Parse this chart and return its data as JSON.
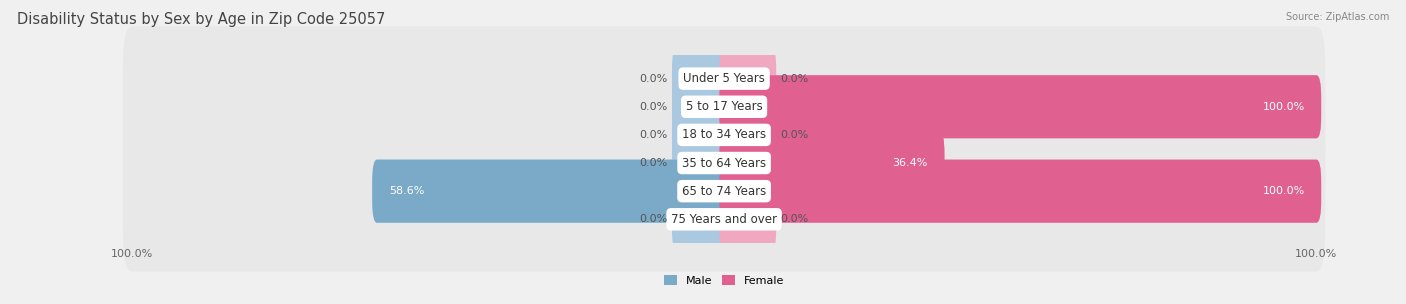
{
  "title": "Disability Status by Sex by Age in Zip Code 25057",
  "source": "Source: ZipAtlas.com",
  "categories": [
    "Under 5 Years",
    "5 to 17 Years",
    "18 to 34 Years",
    "35 to 64 Years",
    "65 to 74 Years",
    "75 Years and over"
  ],
  "male_values": [
    0.0,
    0.0,
    0.0,
    0.0,
    58.6,
    0.0
  ],
  "female_values": [
    0.0,
    100.0,
    0.0,
    36.4,
    100.0,
    0.0
  ],
  "male_color_full": "#7aaac8",
  "male_color_stub": "#aac8e0",
  "female_color_full": "#e06090",
  "female_color_stub": "#f0a8c0",
  "bar_bg_color": "#e0e0e0",
  "bar_row_bg": "#ebebeb",
  "max_value": 100.0,
  "min_stub": 8.0,
  "x_left_label": "100.0%",
  "x_right_label": "100.0%",
  "title_fontsize": 10.5,
  "label_fontsize": 8.0,
  "cat_fontsize": 8.5,
  "tick_fontsize": 8.0,
  "background_color": "#f0f0f0"
}
